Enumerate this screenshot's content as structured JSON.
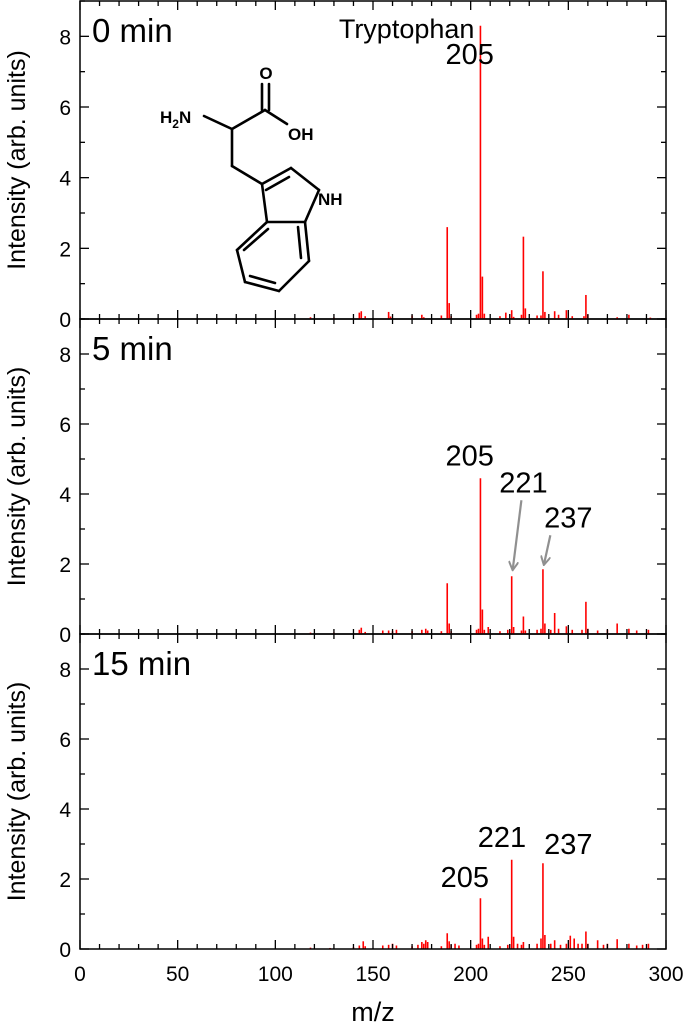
{
  "chart_data": {
    "type": "bar",
    "xlabel": "m/z",
    "ylabel": "Intensity (arb. units)",
    "xlim": [
      0,
      300
    ],
    "xticks": [
      0,
      50,
      100,
      150,
      200,
      250,
      300
    ],
    "ylim": [
      0,
      9
    ],
    "yticks": [
      0,
      2,
      4,
      6,
      8
    ],
    "bar_color": "#ff0000",
    "annotation_color": "#909090",
    "grid": false,
    "panels": [
      {
        "panel_label": "0 min",
        "compound_name": "Tryptophan",
        "molecule_labels": {
          "o": "O",
          "oh": "OH",
          "nh": "NH",
          "h2n_h": "H",
          "h2n_sub": "2",
          "h2n_n": "N"
        },
        "annotations": [
          {
            "text": "205",
            "x": 205,
            "y": 7.05,
            "arrow": false
          }
        ],
        "peaks": [
          {
            "x": 118,
            "y": 0.05
          },
          {
            "x": 130,
            "y": 0.04
          },
          {
            "x": 143,
            "y": 0.18
          },
          {
            "x": 144,
            "y": 0.22
          },
          {
            "x": 146,
            "y": 0.08
          },
          {
            "x": 158,
            "y": 0.2
          },
          {
            "x": 159,
            "y": 0.07
          },
          {
            "x": 170,
            "y": 0.1
          },
          {
            "x": 175,
            "y": 0.12
          },
          {
            "x": 176,
            "y": 0.05
          },
          {
            "x": 185,
            "y": 0.1
          },
          {
            "x": 188,
            "y": 2.6
          },
          {
            "x": 189,
            "y": 0.45
          },
          {
            "x": 190,
            "y": 0.08
          },
          {
            "x": 203,
            "y": 0.12
          },
          {
            "x": 204,
            "y": 0.15
          },
          {
            "x": 205,
            "y": 8.3
          },
          {
            "x": 206,
            "y": 1.2
          },
          {
            "x": 207,
            "y": 0.15
          },
          {
            "x": 215,
            "y": 0.08
          },
          {
            "x": 218,
            "y": 0.18
          },
          {
            "x": 221,
            "y": 0.25
          },
          {
            "x": 222,
            "y": 0.06
          },
          {
            "x": 226,
            "y": 0.12
          },
          {
            "x": 227,
            "y": 2.33
          },
          {
            "x": 228,
            "y": 0.3
          },
          {
            "x": 234,
            "y": 0.1
          },
          {
            "x": 236,
            "y": 0.1
          },
          {
            "x": 237,
            "y": 1.35
          },
          {
            "x": 238,
            "y": 0.2
          },
          {
            "x": 243,
            "y": 0.22
          },
          {
            "x": 245,
            "y": 0.12
          },
          {
            "x": 249,
            "y": 0.25
          },
          {
            "x": 252,
            "y": 0.08
          },
          {
            "x": 258,
            "y": 0.08
          },
          {
            "x": 259,
            "y": 0.68
          },
          {
            "x": 260,
            "y": 0.12
          },
          {
            "x": 275,
            "y": 0.05
          },
          {
            "x": 281,
            "y": 0.12
          },
          {
            "x": 292,
            "y": 0.04
          }
        ]
      },
      {
        "panel_label": "5 min",
        "annotations": [
          {
            "text": "205",
            "x": 205,
            "y": 4.65,
            "arrow": false
          },
          {
            "text": "221",
            "x": 221,
            "y": 1.75,
            "arrow": true,
            "text_x": 227,
            "text_y": 4.05
          },
          {
            "text": "237",
            "x": 237,
            "y": 1.9,
            "arrow": true,
            "text_x": 250,
            "text_y": 3.05
          }
        ],
        "peaks": [
          {
            "x": 118,
            "y": 0.04
          },
          {
            "x": 130,
            "y": 0.04
          },
          {
            "x": 143,
            "y": 0.12
          },
          {
            "x": 144,
            "y": 0.18
          },
          {
            "x": 146,
            "y": 0.06
          },
          {
            "x": 155,
            "y": 0.1
          },
          {
            "x": 158,
            "y": 0.1
          },
          {
            "x": 160,
            "y": 0.08
          },
          {
            "x": 162,
            "y": 0.12
          },
          {
            "x": 170,
            "y": 0.08
          },
          {
            "x": 175,
            "y": 0.12
          },
          {
            "x": 177,
            "y": 0.15
          },
          {
            "x": 178,
            "y": 0.1
          },
          {
            "x": 185,
            "y": 0.08
          },
          {
            "x": 188,
            "y": 1.45
          },
          {
            "x": 189,
            "y": 0.3
          },
          {
            "x": 190,
            "y": 0.08
          },
          {
            "x": 203,
            "y": 0.12
          },
          {
            "x": 204,
            "y": 0.15
          },
          {
            "x": 205,
            "y": 4.45
          },
          {
            "x": 206,
            "y": 0.7
          },
          {
            "x": 207,
            "y": 0.12
          },
          {
            "x": 209,
            "y": 0.2
          },
          {
            "x": 215,
            "y": 0.08
          },
          {
            "x": 219,
            "y": 0.12
          },
          {
            "x": 221,
            "y": 1.65
          },
          {
            "x": 222,
            "y": 0.2
          },
          {
            "x": 226,
            "y": 0.1
          },
          {
            "x": 227,
            "y": 0.5
          },
          {
            "x": 228,
            "y": 0.1
          },
          {
            "x": 234,
            "y": 0.12
          },
          {
            "x": 236,
            "y": 0.15
          },
          {
            "x": 237,
            "y": 1.85
          },
          {
            "x": 238,
            "y": 0.3
          },
          {
            "x": 241,
            "y": 0.12
          },
          {
            "x": 243,
            "y": 0.6
          },
          {
            "x": 245,
            "y": 0.15
          },
          {
            "x": 249,
            "y": 0.22
          },
          {
            "x": 252,
            "y": 0.12
          },
          {
            "x": 257,
            "y": 0.12
          },
          {
            "x": 259,
            "y": 0.92
          },
          {
            "x": 260,
            "y": 0.15
          },
          {
            "x": 265,
            "y": 0.1
          },
          {
            "x": 270,
            "y": 0.12
          },
          {
            "x": 275,
            "y": 0.3
          },
          {
            "x": 281,
            "y": 0.15
          },
          {
            "x": 285,
            "y": 0.1
          },
          {
            "x": 291,
            "y": 0.12
          }
        ]
      },
      {
        "panel_label": "15 min",
        "annotations": [
          {
            "text": "205",
            "x": 205,
            "y": 1.6,
            "arrow": false,
            "text_x": 197
          },
          {
            "text": "221",
            "x": 221,
            "y": 2.75,
            "arrow": false,
            "text_x": 216
          },
          {
            "text": "237",
            "x": 237,
            "y": 2.55,
            "arrow": false,
            "text_x": 250
          }
        ],
        "peaks": [
          {
            "x": 118,
            "y": 0.04
          },
          {
            "x": 128,
            "y": 0.03
          },
          {
            "x": 140,
            "y": 0.05
          },
          {
            "x": 143,
            "y": 0.1
          },
          {
            "x": 145,
            "y": 0.22
          },
          {
            "x": 146,
            "y": 0.08
          },
          {
            "x": 155,
            "y": 0.1
          },
          {
            "x": 158,
            "y": 0.12
          },
          {
            "x": 160,
            "y": 0.15
          },
          {
            "x": 162,
            "y": 0.1
          },
          {
            "x": 170,
            "y": 0.08
          },
          {
            "x": 173,
            "y": 0.12
          },
          {
            "x": 175,
            "y": 0.2
          },
          {
            "x": 176,
            "y": 0.15
          },
          {
            "x": 177,
            "y": 0.25
          },
          {
            "x": 178,
            "y": 0.2
          },
          {
            "x": 185,
            "y": 0.08
          },
          {
            "x": 188,
            "y": 0.45
          },
          {
            "x": 189,
            "y": 0.22
          },
          {
            "x": 190,
            "y": 0.12
          },
          {
            "x": 192,
            "y": 0.15
          },
          {
            "x": 194,
            "y": 0.1
          },
          {
            "x": 203,
            "y": 0.12
          },
          {
            "x": 204,
            "y": 0.15
          },
          {
            "x": 205,
            "y": 1.45
          },
          {
            "x": 206,
            "y": 0.3
          },
          {
            "x": 207,
            "y": 0.12
          },
          {
            "x": 209,
            "y": 0.35
          },
          {
            "x": 215,
            "y": 0.08
          },
          {
            "x": 219,
            "y": 0.12
          },
          {
            "x": 221,
            "y": 2.55
          },
          {
            "x": 222,
            "y": 0.35
          },
          {
            "x": 224,
            "y": 0.15
          },
          {
            "x": 226,
            "y": 0.12
          },
          {
            "x": 227,
            "y": 0.2
          },
          {
            "x": 234,
            "y": 0.15
          },
          {
            "x": 236,
            "y": 0.3
          },
          {
            "x": 237,
            "y": 2.45
          },
          {
            "x": 238,
            "y": 0.4
          },
          {
            "x": 241,
            "y": 0.15
          },
          {
            "x": 243,
            "y": 0.25
          },
          {
            "x": 246,
            "y": 0.12
          },
          {
            "x": 249,
            "y": 0.15
          },
          {
            "x": 251,
            "y": 0.38
          },
          {
            "x": 253,
            "y": 0.3
          },
          {
            "x": 255,
            "y": 0.15
          },
          {
            "x": 257,
            "y": 0.15
          },
          {
            "x": 259,
            "y": 0.5
          },
          {
            "x": 260,
            "y": 0.15
          },
          {
            "x": 265,
            "y": 0.25
          },
          {
            "x": 268,
            "y": 0.12
          },
          {
            "x": 270,
            "y": 0.15
          },
          {
            "x": 275,
            "y": 0.28
          },
          {
            "x": 281,
            "y": 0.15
          },
          {
            "x": 285,
            "y": 0.1
          },
          {
            "x": 288,
            "y": 0.12
          },
          {
            "x": 291,
            "y": 0.15
          }
        ]
      }
    ]
  }
}
